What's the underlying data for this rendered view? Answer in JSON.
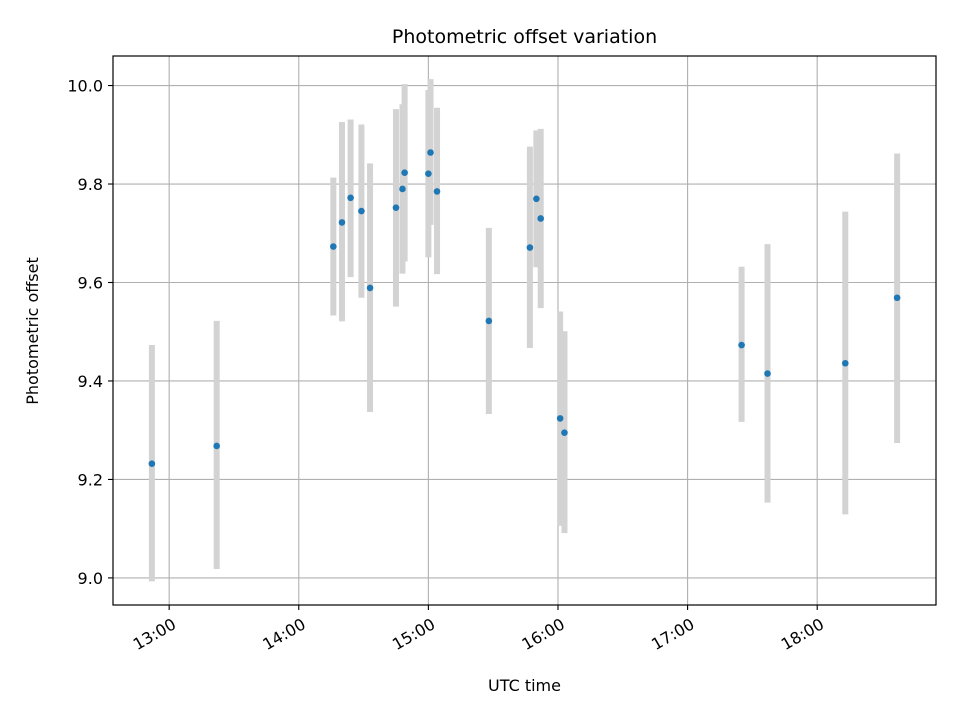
{
  "chart_data": {
    "type": "scatter",
    "title": "Photometric offset variation",
    "xlabel": "UTC time",
    "ylabel": "Photometric offset",
    "x_axis_kind": "time",
    "xlim": [
      "12:34",
      "18:55"
    ],
    "ylim": [
      8.945,
      10.06
    ],
    "x_ticks": [
      "13:00",
      "14:00",
      "15:00",
      "16:00",
      "17:00",
      "18:00"
    ],
    "y_ticks": [
      "9.0",
      "9.2",
      "9.4",
      "9.6",
      "9.8",
      "10.0"
    ],
    "grid": true,
    "legend": "none",
    "colors": {
      "point": "#1f77b4",
      "errorbar": "#d3d3d3",
      "grid": "#b0b0b0",
      "axes": "#000000"
    },
    "points": [
      {
        "x": "12:52",
        "y": 9.232,
        "y_low": 8.993,
        "y_high": 9.473
      },
      {
        "x": "13:22",
        "y": 9.268,
        "y_low": 9.018,
        "y_high": 9.522
      },
      {
        "x": "14:16",
        "y": 9.673,
        "y_low": 9.533,
        "y_high": 9.813
      },
      {
        "x": "14:20",
        "y": 9.722,
        "y_low": 9.521,
        "y_high": 9.926
      },
      {
        "x": "14:24",
        "y": 9.772,
        "y_low": 9.611,
        "y_high": 9.931
      },
      {
        "x": "14:29",
        "y": 9.745,
        "y_low": 9.569,
        "y_high": 9.921
      },
      {
        "x": "14:33",
        "y": 9.589,
        "y_low": 9.337,
        "y_high": 9.842
      },
      {
        "x": "14:45",
        "y": 9.752,
        "y_low": 9.551,
        "y_high": 9.952
      },
      {
        "x": "14:48",
        "y": 9.79,
        "y_low": 9.618,
        "y_high": 9.962
      },
      {
        "x": "14:49",
        "y": 9.823,
        "y_low": 9.643,
        "y_high": 10.003
      },
      {
        "x": "15:00",
        "y": 9.821,
        "y_low": 9.651,
        "y_high": 9.991
      },
      {
        "x": "15:01",
        "y": 9.864,
        "y_low": 9.717,
        "y_high": 10.013
      },
      {
        "x": "15:04",
        "y": 9.785,
        "y_low": 9.617,
        "y_high": 9.955
      },
      {
        "x": "15:28",
        "y": 9.522,
        "y_low": 9.333,
        "y_high": 9.711
      },
      {
        "x": "15:47",
        "y": 9.671,
        "y_low": 9.467,
        "y_high": 9.876
      },
      {
        "x": "15:50",
        "y": 9.77,
        "y_low": 9.631,
        "y_high": 9.909
      },
      {
        "x": "15:52",
        "y": 9.73,
        "y_low": 9.548,
        "y_high": 9.912
      },
      {
        "x": "16:01",
        "y": 9.324,
        "y_low": 9.106,
        "y_high": 9.541
      },
      {
        "x": "16:03",
        "y": 9.295,
        "y_low": 9.091,
        "y_high": 9.501
      },
      {
        "x": "17:25",
        "y": 9.473,
        "y_low": 9.317,
        "y_high": 9.632
      },
      {
        "x": "17:37",
        "y": 9.415,
        "y_low": 9.153,
        "y_high": 9.678
      },
      {
        "x": "18:13",
        "y": 9.436,
        "y_low": 9.129,
        "y_high": 9.744
      },
      {
        "x": "18:37",
        "y": 9.569,
        "y_low": 9.274,
        "y_high": 9.862
      }
    ]
  }
}
